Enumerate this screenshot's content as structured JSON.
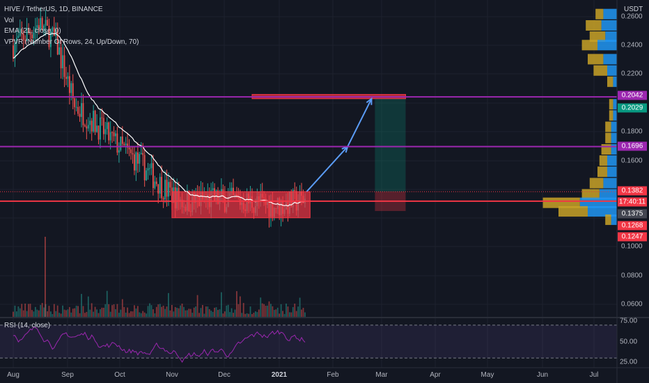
{
  "legend": {
    "symbol": "HIVE / TetherUS, 1D, BINANCE",
    "vol": "Vol",
    "ema": "EMA (21, close, 0)",
    "vpvr": "VPVR (Number Of Rows, 24, Up/Down, 70)",
    "rsi": "RSI (14, close)"
  },
  "price_axis": {
    "unit": "USDT",
    "ticks": [
      "0.2600",
      "0.2400",
      "0.2200",
      "0.1800",
      "0.1600",
      "0.1000",
      "0.0800",
      "0.0600"
    ],
    "tags": [
      {
        "label": "0.2042",
        "color": "#9c27b0"
      },
      {
        "label": "0.2029",
        "color": "#089981"
      },
      {
        "label": "0.1696",
        "color": "#9c27b0"
      },
      {
        "label": "0.1382",
        "color": "#f23645"
      },
      {
        "label": "17:40:11",
        "color": "#f23645"
      },
      {
        "label": "0.1375",
        "color": "#434651"
      },
      {
        "label": "0.1268",
        "color": "#f23645"
      },
      {
        "label": "0.1247",
        "color": "#f23645"
      }
    ]
  },
  "rsi_axis": {
    "ticks": [
      "75.00",
      "50.00",
      "25.00"
    ]
  },
  "time_axis": {
    "labels": [
      "Aug",
      "Sep",
      "Oct",
      "Nov",
      "Dec",
      "2021",
      "Feb",
      "Mar",
      "Apr",
      "May",
      "Jun",
      "Jul"
    ]
  },
  "chart_data": {
    "type": "candlestick",
    "symbol": "HIVE / TetherUS",
    "interval": "1D",
    "exchange": "BINANCE",
    "price_scale": {
      "min": 0.05,
      "max": 0.27
    },
    "rsi_scale": {
      "min": 20,
      "max": 80
    },
    "horizontal_levels": [
      {
        "price": 0.2042,
        "color": "#9c27b0"
      },
      {
        "price": 0.1696,
        "color": "#9c27b0"
      },
      {
        "price": 0.1316,
        "color": "#f23645"
      }
    ],
    "current_price": 0.1382,
    "rsi_bands": [
      70,
      30
    ],
    "ema_price_path": [
      {
        "date": "2020-08-01",
        "price": 0.24
      },
      {
        "date": "2020-08-16",
        "price": 0.255
      },
      {
        "date": "2020-08-26",
        "price": 0.243
      },
      {
        "date": "2020-09-06",
        "price": 0.198
      },
      {
        "date": "2020-09-16",
        "price": 0.188
      },
      {
        "date": "2020-09-29",
        "price": 0.173
      },
      {
        "date": "2020-10-15",
        "price": 0.157
      },
      {
        "date": "2020-10-29",
        "price": 0.14
      },
      {
        "date": "2020-11-09",
        "price": 0.131
      },
      {
        "date": "2020-11-29",
        "price": 0.133
      },
      {
        "date": "2020-12-19",
        "price": 0.131
      },
      {
        "date": "2021-01-03",
        "price": 0.128
      },
      {
        "date": "2021-01-19",
        "price": 0.133
      }
    ],
    "annotations": [
      {
        "type": "rectangle",
        "color": "#f23645",
        "from": "2020-11-02",
        "to": "2021-01-22",
        "price_top": 0.1382,
        "price_bottom": 0.12
      },
      {
        "type": "rectangle",
        "color": "#f23645",
        "from": "2020-12-19",
        "to": "2021-03-19",
        "price_top": 0.2059,
        "price_bottom": 0.2029
      },
      {
        "type": "long_position",
        "from": "2021-03-01",
        "to": "2021-03-19",
        "entry": 0.1382,
        "target": 0.2029,
        "stop": 0.1247
      },
      {
        "type": "arrow_path",
        "color": "#5b9cf6",
        "points": [
          {
            "date": "2021-01-20",
            "price": 0.1382
          },
          {
            "date": "2021-02-13",
            "price": 0.1696
          },
          {
            "date": "2021-02-27",
            "price": 0.2029
          }
        ]
      }
    ],
    "vpvr_rows": [
      {
        "price": 0.2616,
        "up": 0.14,
        "down": 0.08
      },
      {
        "price": 0.2537,
        "up": 0.16,
        "down": 0.16
      },
      {
        "price": 0.2459,
        "up": 0.12,
        "down": 0.16
      },
      {
        "price": 0.24,
        "up": 0.2,
        "down": 0.16
      },
      {
        "price": 0.2302,
        "up": 0.14,
        "down": 0.16
      },
      {
        "price": 0.2223,
        "up": 0.1,
        "down": 0.14
      },
      {
        "price": 0.2145,
        "up": 0.04,
        "down": 0.06
      },
      {
        "price": 0.1988,
        "up": 0.04,
        "down": 0.04
      },
      {
        "price": 0.191,
        "up": 0.04,
        "down": 0.04
      },
      {
        "price": 0.1831,
        "up": 0.06,
        "down": 0.06
      },
      {
        "price": 0.1753,
        "up": 0.06,
        "down": 0.06
      },
      {
        "price": 0.1674,
        "up": 0.06,
        "down": 0.1
      },
      {
        "price": 0.1596,
        "up": 0.1,
        "down": 0.08
      },
      {
        "price": 0.1518,
        "up": 0.1,
        "down": 0.1
      },
      {
        "price": 0.1439,
        "up": 0.14,
        "down": 0.14
      },
      {
        "price": 0.1361,
        "up": 0.18,
        "down": 0.18
      },
      {
        "price": 0.1302,
        "up": 0.38,
        "down": 0.38
      },
      {
        "price": 0.1242,
        "up": 0.3,
        "down": 0.3
      },
      {
        "price": 0.1184,
        "up": 0.06,
        "down": 0.06
      }
    ],
    "colors": {
      "up": "#26a69a",
      "down": "#ef5350",
      "ema": "#ffffff",
      "rsi": "#9c27b0",
      "vpvr_up": "#2196f3",
      "vpvr_down": "#c9a227"
    }
  }
}
